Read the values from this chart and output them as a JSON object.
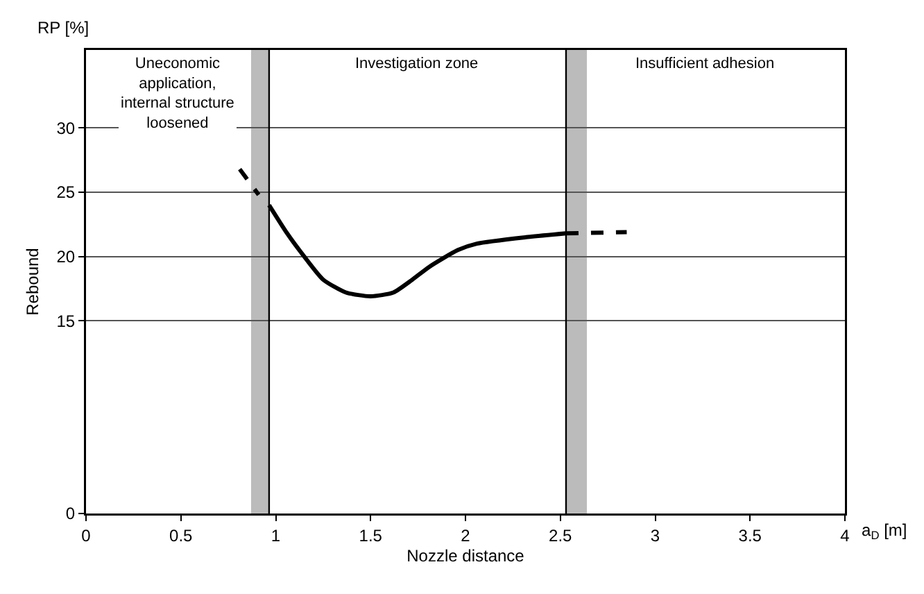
{
  "chart_data": {
    "type": "line",
    "xlabel": "Nozzle distance",
    "ylabel": "Rebound",
    "annotations": [
      "RP [%]",
      "a$_{D}$ [m]",
      "Uneconomic\napplication,\ninternal structure\nloosened",
      "Investigation zone",
      "Insufficient adhesion"
    ],
    "xlim": [
      0,
      4.0
    ],
    "xticks": [
      0,
      0.5,
      1.0,
      1.5,
      2.0,
      2.5,
      3.0,
      3.5,
      4.0
    ],
    "ylim": [
      0,
      36.07
    ],
    "yticks": [
      0,
      15,
      20,
      25,
      30
    ],
    "grid": "y",
    "marker": "none",
    "series": [
      {
        "color": "#000000",
        "line_style": "dashed",
        "x": [
          0.81,
          0.91
        ],
        "values": [
          26.8,
          24.8
        ]
      },
      {
        "color": "#000000",
        "line_style": "solid",
        "x": [
          0.965,
          1.06,
          1.15,
          1.25,
          1.37,
          1.5,
          1.62,
          1.72,
          1.81,
          1.96,
          2.06,
          2.32,
          2.53
        ],
        "values": [
          24.0,
          21.8,
          20.0,
          18.2,
          17.2,
          16.9,
          17.2,
          18.2,
          19.2,
          20.5,
          21.0,
          21.5,
          21.8
        ]
      },
      {
        "color": "#000000",
        "line_style": "dashed",
        "x": [
          2.53,
          2.85
        ],
        "values": [
          21.8,
          21.9
        ]
      }
    ],
    "ref_lines": [
      {
        "axis": "x",
        "value": 0.965
      },
      {
        "axis": "x",
        "value": 2.53
      }
    ],
    "bands": [
      {
        "axis": "x",
        "from": 0.87,
        "to": 0.965,
        "color": "#bbbbbb"
      },
      {
        "axis": "x",
        "from": 2.53,
        "to": 2.64,
        "color": "#bbbbbb"
      }
    ]
  }
}
